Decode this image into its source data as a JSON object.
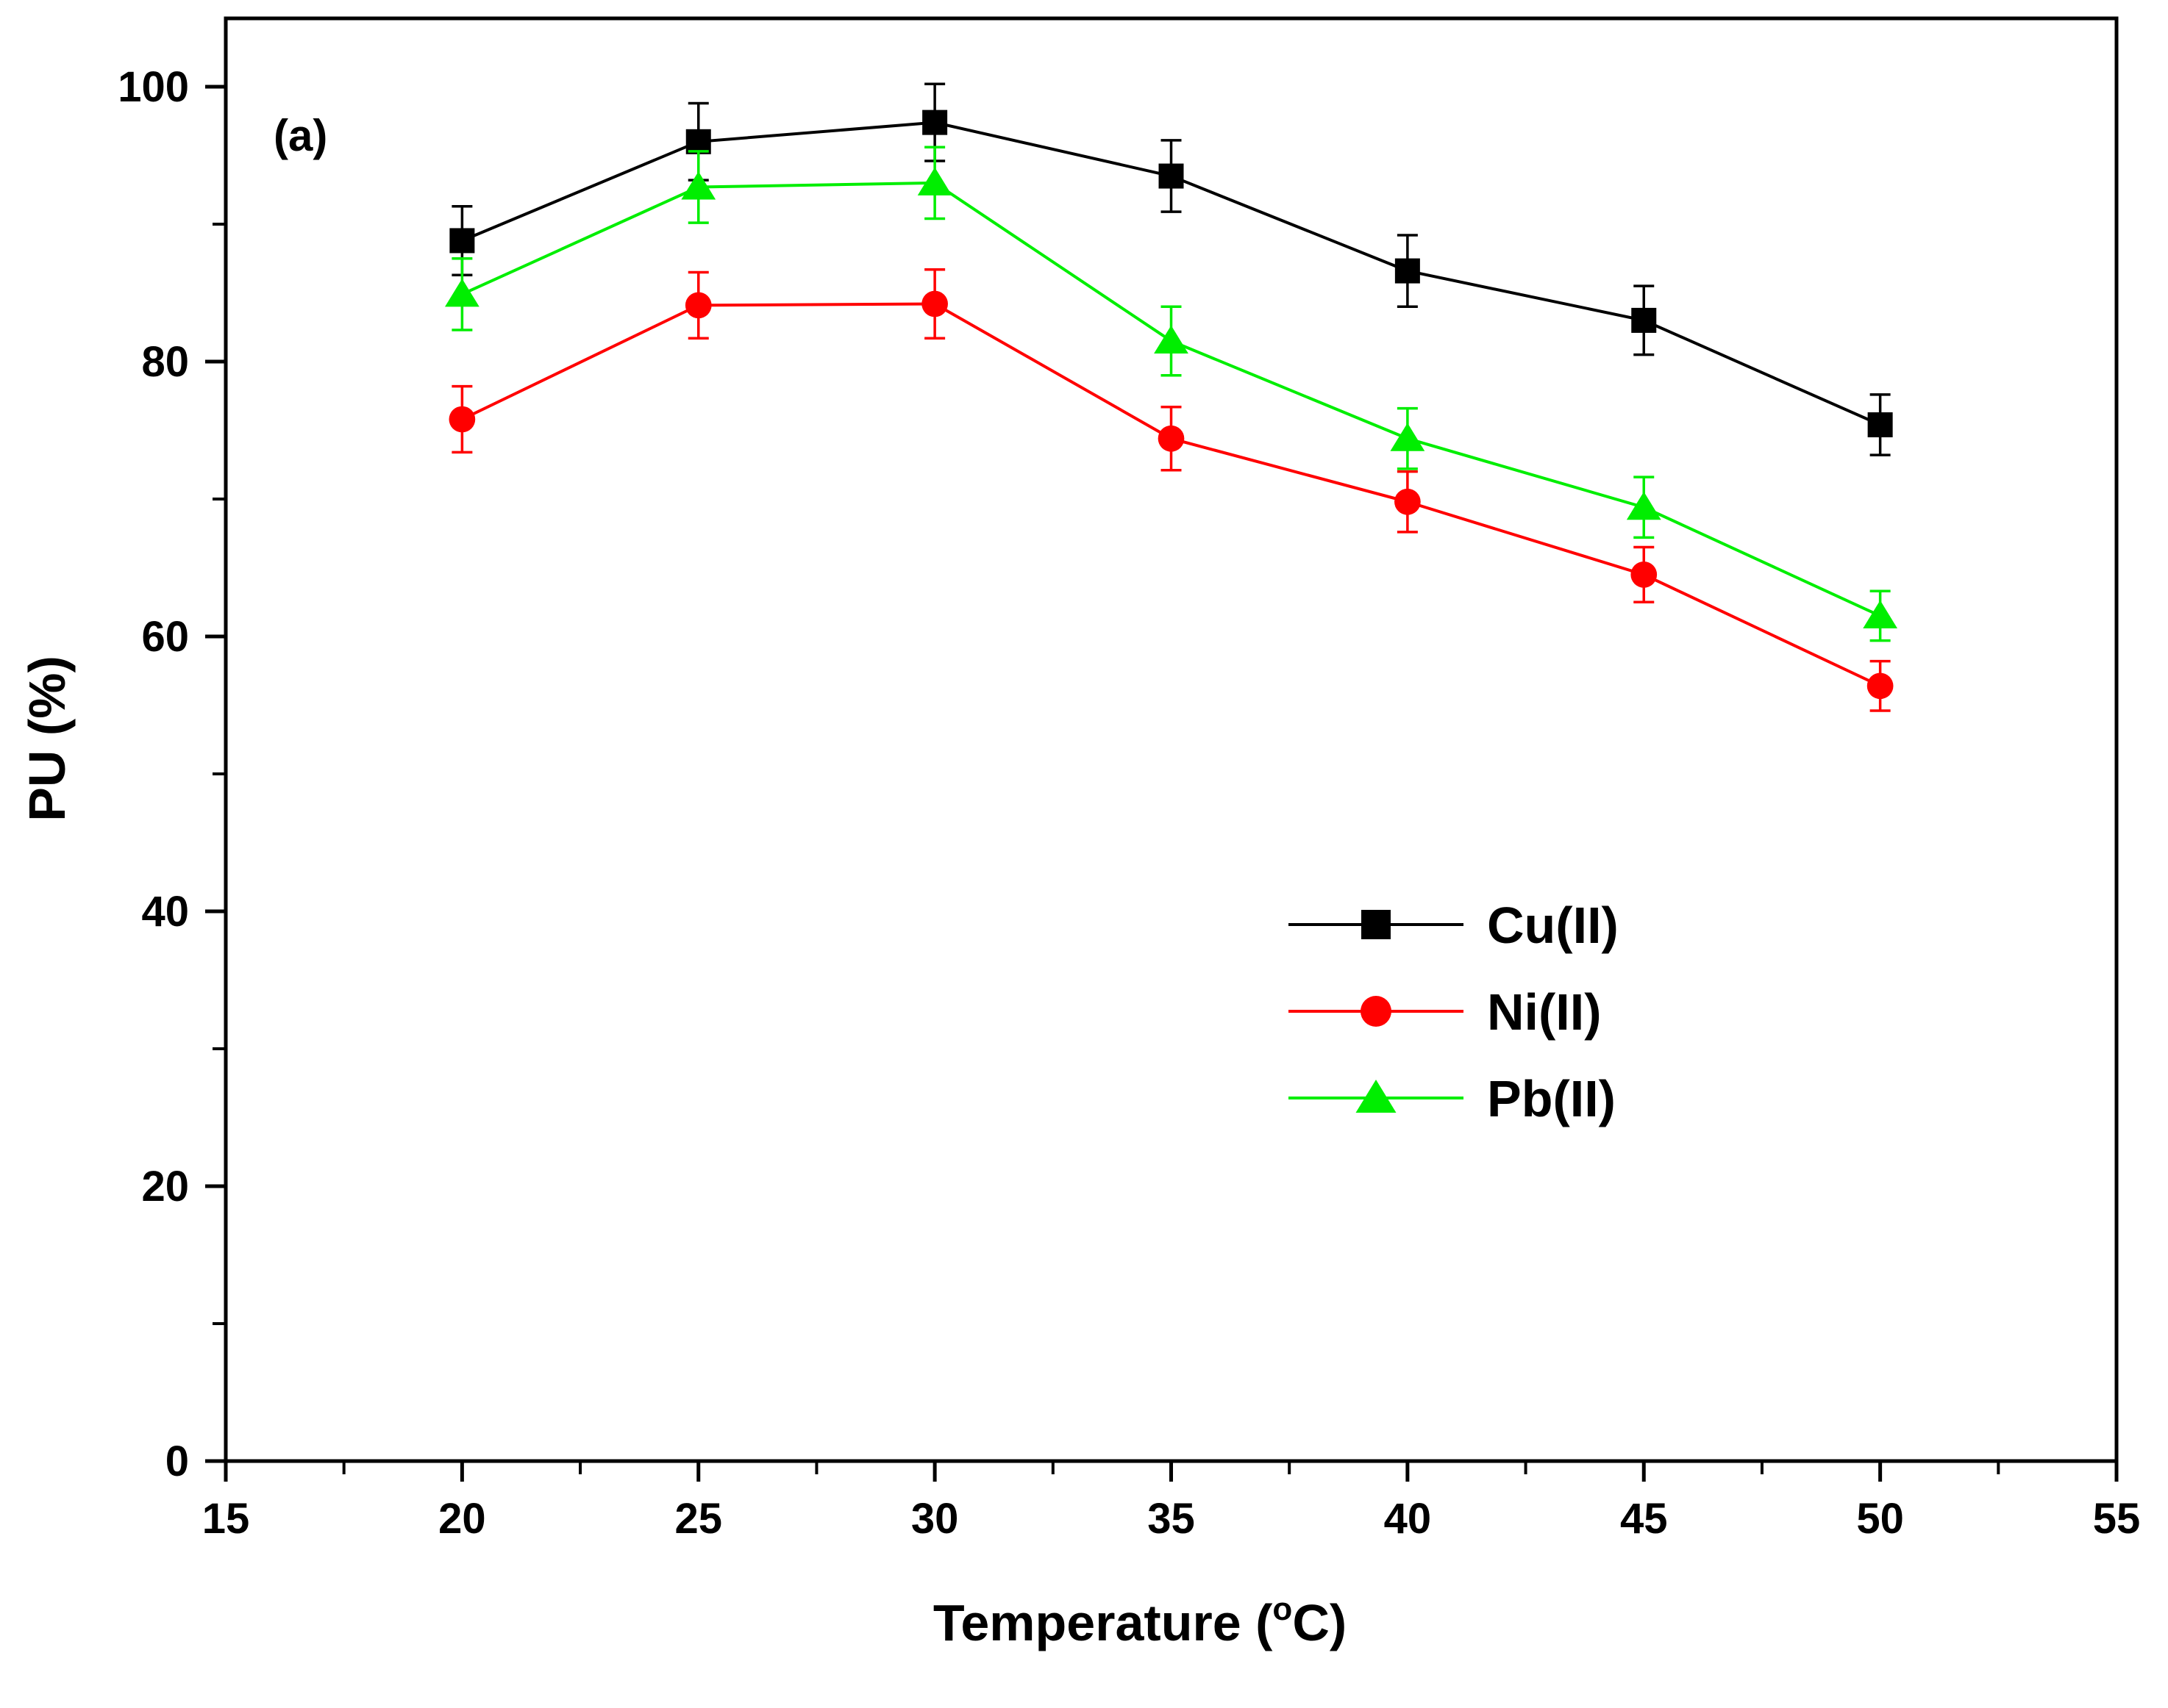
{
  "chart_data": {
    "type": "line",
    "panel_label": "(a)",
    "xlabel": "Temperature (",
    "xlabel_sup": "o",
    "xlabel_end": "C)",
    "ylabel": "PU (%)",
    "xlim": [
      15,
      55
    ],
    "ylim": [
      0,
      100
    ],
    "x_ticks": [
      15,
      20,
      25,
      30,
      35,
      40,
      45,
      50,
      55
    ],
    "y_ticks": [
      0,
      20,
      40,
      60,
      80,
      100
    ],
    "x_tick_labels": [
      "15",
      "20",
      "25",
      "30",
      "35",
      "40",
      "45",
      "50",
      "55"
    ],
    "y_tick_labels": [
      "0",
      "20",
      "40",
      "60",
      "80",
      "100"
    ],
    "x": [
      20,
      25,
      30,
      35,
      40,
      45,
      50
    ],
    "series": [
      {
        "name": "Cu(II)",
        "marker": "square",
        "color": "#000000",
        "values": [
          88.8,
          96.0,
          97.4,
          93.5,
          86.6,
          83.0,
          75.4
        ],
        "errors": [
          2.5,
          2.8,
          2.8,
          2.6,
          2.6,
          2.5,
          2.2
        ]
      },
      {
        "name": "Ni(II)",
        "marker": "circle",
        "color": "#ff0000",
        "values": [
          75.8,
          84.1,
          84.2,
          74.4,
          69.8,
          64.5,
          56.4
        ],
        "errors": [
          2.4,
          2.4,
          2.5,
          2.3,
          2.2,
          2.0,
          1.8
        ]
      },
      {
        "name": "Pb(II)",
        "marker": "triangle",
        "color": "#00ee00",
        "values": [
          84.9,
          92.7,
          93.0,
          81.5,
          74.4,
          69.4,
          61.5
        ],
        "errors": [
          2.6,
          2.6,
          2.6,
          2.5,
          2.2,
          2.2,
          1.8
        ]
      }
    ],
    "legend_position": "center-right",
    "grid": false
  }
}
